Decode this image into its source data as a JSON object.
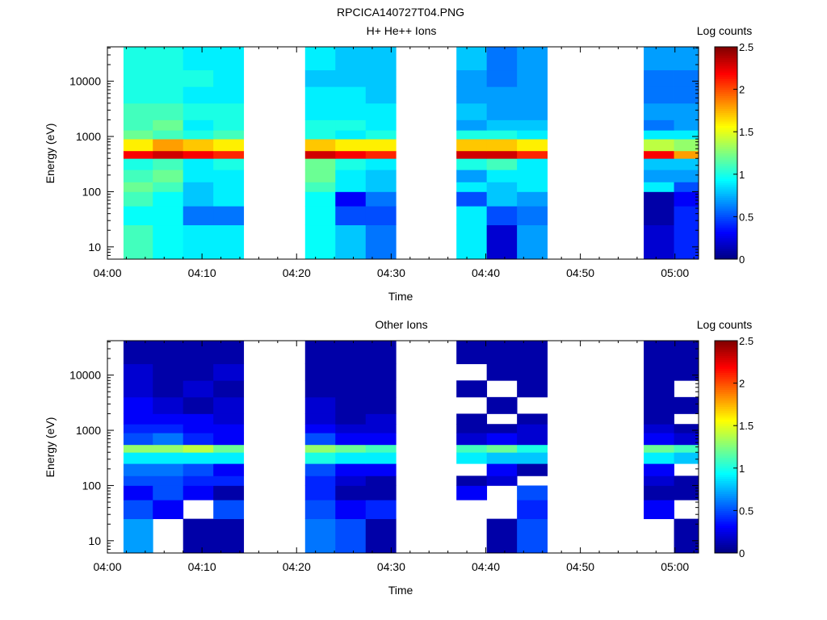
{
  "figure_title": "RPCICA140727T04.PNG",
  "chart_data": [
    {
      "type": "heatmap",
      "title": "H+ He++ Ions",
      "xlabel": "Time",
      "ylabel": "Energy (eV)",
      "colorbar_label": "Log counts",
      "colorbar_ticks": [
        "0",
        "0.5",
        "1",
        "1.5",
        "2",
        "2.5"
      ],
      "colorbar_range": [
        0,
        2.5
      ],
      "colormap": "jet",
      "x_ticks": [
        "04:00",
        "04:10",
        "04:20",
        "04:30",
        "04:40",
        "04:50",
        "05:00"
      ],
      "x_range_min": [
        0,
        62.5
      ],
      "y_scale": "log",
      "y_ticks": [
        "10",
        "100",
        "1000",
        "10000"
      ],
      "y_range_ev": [
        6,
        42000
      ],
      "time_columns_min": [
        [
          1.7,
          4.8
        ],
        [
          4.8,
          8
        ],
        [
          8,
          11.2
        ],
        [
          11.2,
          14.4
        ],
        [
          20.9,
          24.1
        ],
        [
          24.1,
          27.3
        ],
        [
          27.3,
          30.5
        ],
        [
          36.9,
          40.1
        ],
        [
          40.1,
          43.3
        ],
        [
          43.3,
          46.5
        ],
        [
          56.7,
          59.9
        ],
        [
          59.9,
          62.5
        ]
      ],
      "energy_edges_ev": [
        6,
        25,
        55,
        100,
        150,
        250,
        400,
        550,
        900,
        1300,
        2000,
        4000,
        8000,
        16000,
        42000
      ],
      "values": [
        [
          1.1,
          0.95,
          0.9,
          0.9,
          0.95,
          0.8,
          0.6,
          0.9,
          0.2,
          0.7,
          0.2,
          0.4
        ],
        [
          0.95,
          0.95,
          0.6,
          0.6,
          0.95,
          0.5,
          0.5,
          0.9,
          0.5,
          0.6,
          0.1,
          0.4
        ],
        [
          1.1,
          0.95,
          0.8,
          0.9,
          0.95,
          0.3,
          0.6,
          0.5,
          0.8,
          0.7,
          0.1,
          0.3
        ],
        [
          1.2,
          1.1,
          0.8,
          0.9,
          1.1,
          0.9,
          0.8,
          0.9,
          0.8,
          0.9,
          0.9,
          0.5
        ],
        [
          1.1,
          1.2,
          0.9,
          0.9,
          1.2,
          0.9,
          0.8,
          0.7,
          0.9,
          0.9,
          0.7,
          0.7
        ],
        [
          1.0,
          1.1,
          0.9,
          1.0,
          1.2,
          1.0,
          0.9,
          1.0,
          1.1,
          0.9,
          0.8,
          0.8
        ],
        [
          2.2,
          2.3,
          2.2,
          2.1,
          2.3,
          2.2,
          2.1,
          2.3,
          2.3,
          2.1,
          2.2,
          1.8
        ],
        [
          1.6,
          1.8,
          1.7,
          1.6,
          1.7,
          1.6,
          1.6,
          1.7,
          1.7,
          1.6,
          1.4,
          1.3
        ],
        [
          1.2,
          1.1,
          1.0,
          1.1,
          1.0,
          0.9,
          1.0,
          1.0,
          1.0,
          0.9,
          0.9,
          0.9
        ],
        [
          1.1,
          1.2,
          0.9,
          1.0,
          1.0,
          1.0,
          0.9,
          0.7,
          0.8,
          0.8,
          0.6,
          0.7
        ],
        [
          1.1,
          1.1,
          1.0,
          1.0,
          0.9,
          0.9,
          0.9,
          0.8,
          0.7,
          0.7,
          0.7,
          0.7
        ],
        [
          1.0,
          1.0,
          0.9,
          0.9,
          0.9,
          0.9,
          0.8,
          0.7,
          0.7,
          0.7,
          0.6,
          0.6
        ],
        [
          1.0,
          1.0,
          1.0,
          0.9,
          0.8,
          0.8,
          0.8,
          0.7,
          0.6,
          0.7,
          0.6,
          0.6
        ],
        [
          1.0,
          1.0,
          0.9,
          0.9,
          0.9,
          0.8,
          0.8,
          0.8,
          0.6,
          0.7,
          0.7,
          0.7
        ]
      ]
    },
    {
      "type": "heatmap",
      "title": "Other Ions",
      "xlabel": "Time",
      "ylabel": "Energy (eV)",
      "colorbar_label": "Log counts",
      "colorbar_ticks": [
        "0",
        "0.5",
        "1",
        "1.5",
        "2",
        "2.5"
      ],
      "colorbar_range": [
        0,
        2.5
      ],
      "colormap": "jet",
      "x_ticks": [
        "04:00",
        "04:10",
        "04:20",
        "04:30",
        "04:40",
        "04:50",
        "05:00"
      ],
      "x_range_min": [
        0,
        62.5
      ],
      "y_scale": "log",
      "y_ticks": [
        "10",
        "100",
        "1000",
        "10000"
      ],
      "y_range_ev": [
        6,
        42000
      ],
      "time_columns_min": [
        [
          1.7,
          4.8
        ],
        [
          4.8,
          8
        ],
        [
          8,
          11.2
        ],
        [
          11.2,
          14.4
        ],
        [
          20.9,
          24.1
        ],
        [
          24.1,
          27.3
        ],
        [
          27.3,
          30.5
        ],
        [
          36.9,
          40.1
        ],
        [
          40.1,
          43.3
        ],
        [
          43.3,
          46.5
        ],
        [
          56.7,
          59.9
        ],
        [
          59.9,
          62.5
        ]
      ],
      "energy_edges_ev": [
        6,
        25,
        55,
        100,
        150,
        250,
        400,
        550,
        900,
        1300,
        2000,
        4000,
        8000,
        16000,
        42000
      ],
      "values": [
        [
          0.7,
          null,
          0.1,
          0.1,
          0.6,
          0.5,
          0.1,
          null,
          0.1,
          0.5,
          null,
          0.1
        ],
        [
          0.5,
          0.3,
          null,
          0.5,
          0.5,
          0.3,
          0.4,
          null,
          null,
          0.4,
          0.3,
          null
        ],
        [
          0.3,
          0.5,
          0.3,
          0.1,
          0.4,
          0.1,
          0.1,
          0.3,
          null,
          0.5,
          0.1,
          0.1
        ],
        [
          0.5,
          0.5,
          0.4,
          0.4,
          0.4,
          0.2,
          0.1,
          0.1,
          0.2,
          null,
          0.2,
          0.1
        ],
        [
          0.6,
          0.6,
          0.5,
          0.3,
          0.5,
          0.3,
          0.3,
          null,
          0.3,
          0.1,
          0.3,
          null
        ],
        [
          0.9,
          0.9,
          0.9,
          0.9,
          1.0,
          0.9,
          0.9,
          0.9,
          0.8,
          0.8,
          0.9,
          0.8
        ],
        [
          1.3,
          1.3,
          1.4,
          1.2,
          1.3,
          1.2,
          1.1,
          1.1,
          1.2,
          1.0,
          1.2,
          1.1
        ],
        [
          0.5,
          0.6,
          0.4,
          0.3,
          0.5,
          0.3,
          0.3,
          0.2,
          0.3,
          0.2,
          0.3,
          0.2
        ],
        [
          0.4,
          0.4,
          0.3,
          0.3,
          0.3,
          0.2,
          0.2,
          0.1,
          0.1,
          0.2,
          0.2,
          0.1
        ],
        [
          0.3,
          0.3,
          0.3,
          0.2,
          0.2,
          0.1,
          0.2,
          0.1,
          null,
          0.1,
          0.1,
          null
        ],
        [
          0.3,
          0.2,
          0.1,
          0.2,
          0.2,
          0.1,
          0.1,
          null,
          0.1,
          null,
          0.1,
          0.1
        ],
        [
          0.2,
          0.1,
          0.2,
          0.1,
          0.1,
          0.1,
          0.1,
          0.1,
          null,
          0.1,
          0.1,
          null
        ],
        [
          0.2,
          0.1,
          0.1,
          0.2,
          0.1,
          0.1,
          0.1,
          null,
          0.1,
          0.1,
          0.1,
          0.1
        ],
        [
          0.1,
          0.1,
          0.1,
          0.1,
          0.1,
          0.1,
          0.1,
          0.1,
          0.1,
          0.1,
          0.1,
          0.1
        ]
      ]
    }
  ]
}
